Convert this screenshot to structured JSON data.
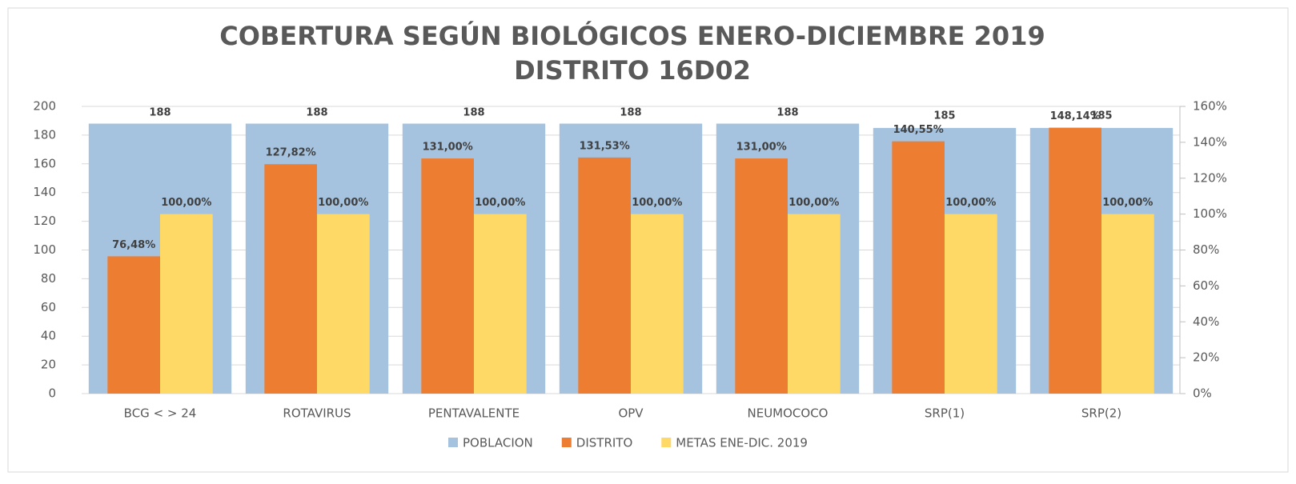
{
  "chart_data": {
    "type": "bar",
    "title": "COBERTURA SEGÚN BIOLÓGICOS ENERO-DICIEMBRE 2019",
    "subtitle": "DISTRITO 16D02",
    "categories": [
      "BCG < > 24",
      "ROTAVIRUS",
      "PENTAVALENTE",
      "OPV",
      "NEUMOCOCO",
      "SRP(1)",
      "SRP(2)"
    ],
    "series": [
      {
        "name": "POBLACION",
        "color": "#a5c3df",
        "axis": "y",
        "values": [
          188,
          188,
          188,
          188,
          188,
          185,
          185
        ]
      },
      {
        "name": "DISTRITO",
        "color": "#ed7d31",
        "axis": "y2",
        "values": [
          76.48,
          127.82,
          131.0,
          131.53,
          131.0,
          140.55,
          148.14
        ],
        "value_labels": [
          "76,48%",
          "127,82%",
          "131,00%",
          "131,53%",
          "131,00%",
          "140,55%",
          "148,14%"
        ]
      },
      {
        "name": "METAS ENE-DIC. 2019",
        "color": "#ffd966",
        "axis": "y2",
        "values": [
          100,
          100,
          100,
          100,
          100,
          100,
          100
        ],
        "value_labels": [
          "100,00%",
          "100,00%",
          "100,00%",
          "100,00%",
          "100,00%",
          "100,00%",
          "100,00%"
        ]
      }
    ],
    "ylim": [
      0,
      200
    ],
    "yticks": [
      0,
      20,
      40,
      60,
      80,
      100,
      120,
      140,
      160,
      180,
      200
    ],
    "y2lim": [
      0,
      160
    ],
    "y2ticks": [
      {
        "value": 0,
        "label": "0%"
      },
      {
        "value": 20,
        "label": "20%"
      },
      {
        "value": 40,
        "label": "40%"
      },
      {
        "value": 60,
        "label": "60%"
      },
      {
        "value": 80,
        "label": "80%"
      },
      {
        "value": 100,
        "label": "100%"
      },
      {
        "value": 120,
        "label": "120%"
      },
      {
        "value": 140,
        "label": "140%"
      },
      {
        "value": 160,
        "label": "160%"
      }
    ],
    "grid": true,
    "legend": "bottom"
  }
}
